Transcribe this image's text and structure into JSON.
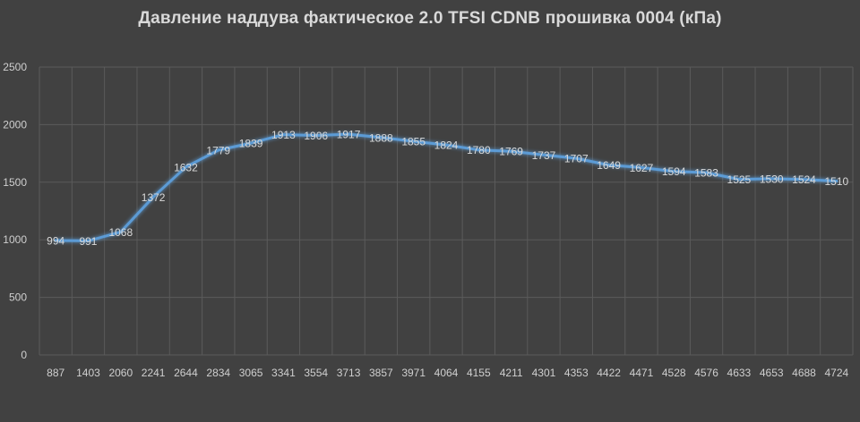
{
  "chart_data": {
    "type": "line",
    "title": "Давление наддува фактическое 2.0 TFSI CDNB прошивка 0004 (кПа)",
    "xlabel": "",
    "ylabel": "",
    "ylim": [
      0,
      2500
    ],
    "yticks": [
      0,
      500,
      1000,
      1500,
      2000,
      2500
    ],
    "grid": true,
    "legend": "none",
    "categories": [
      "887",
      "1403",
      "2060",
      "2241",
      "2644",
      "2834",
      "3065",
      "3341",
      "3554",
      "3713",
      "3857",
      "3971",
      "4064",
      "4155",
      "4211",
      "4301",
      "4353",
      "4422",
      "4471",
      "4528",
      "4576",
      "4633",
      "4653",
      "4688",
      "4724"
    ],
    "series": [
      {
        "values": [
          994,
          991,
          1068,
          1372,
          1632,
          1779,
          1839,
          1913,
          1906,
          1917,
          1888,
          1855,
          1824,
          1780,
          1769,
          1737,
          1707,
          1649,
          1627,
          1594,
          1583,
          1525,
          1530,
          1524,
          1510
        ],
        "color": "#5b9bd5"
      }
    ]
  }
}
